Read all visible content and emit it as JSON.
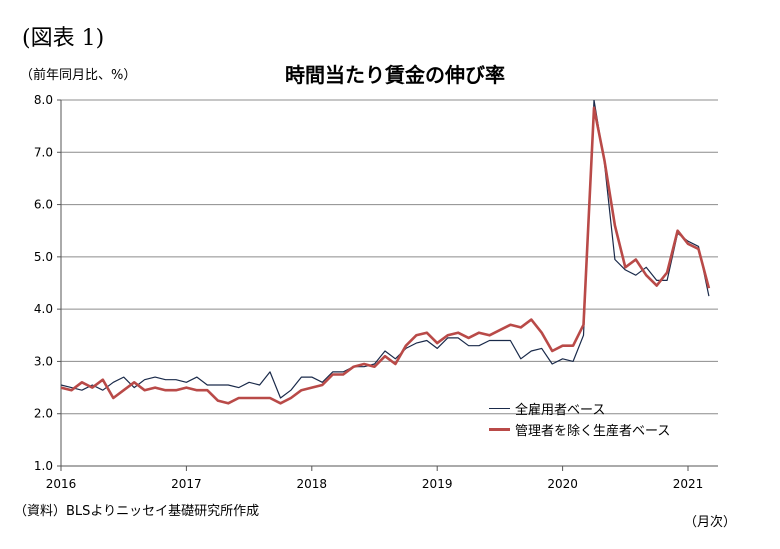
{
  "figure_label": "(図表 1)",
  "unit_label": "（前年同月比、%）",
  "source": "（資料）BLSよりニッセイ基礎研究所作成",
  "x_unit": "（月次）",
  "chart_data": {
    "type": "line",
    "title": "時間当たり賃金の伸び率",
    "xlabel": "",
    "ylabel": "",
    "ylim": [
      1.0,
      8.0
    ],
    "y_ticks": [
      "1.0",
      "2.0",
      "3.0",
      "4.0",
      "5.0",
      "6.0",
      "7.0",
      "8.0"
    ],
    "x_ticks": [
      "2016",
      "2017",
      "2018",
      "2019",
      "2020",
      "2021"
    ],
    "x_start": "2016-01",
    "x_end": "2021-03",
    "grid": "horizontal",
    "legend_position": "bottom-right",
    "series": [
      {
        "name": "全雇用者ベース",
        "color": "#1a2a4a",
        "values": [
          2.55,
          2.5,
          2.45,
          2.55,
          2.45,
          2.6,
          2.7,
          2.5,
          2.65,
          2.7,
          2.65,
          2.65,
          2.6,
          2.7,
          2.55,
          2.55,
          2.55,
          2.5,
          2.6,
          2.55,
          2.8,
          2.3,
          2.45,
          2.7,
          2.7,
          2.6,
          2.8,
          2.8,
          2.9,
          2.9,
          2.95,
          3.2,
          3.05,
          3.25,
          3.35,
          3.4,
          3.25,
          3.45,
          3.45,
          3.3,
          3.3,
          3.4,
          3.4,
          3.4,
          3.05,
          3.2,
          3.25,
          2.95,
          3.05,
          3.0,
          3.5,
          8.0,
          6.8,
          4.95,
          4.75,
          4.65,
          4.8,
          4.55,
          4.55,
          5.45,
          5.3,
          5.2,
          4.25
        ]
      },
      {
        "name": "管理者を除く生産者ベース",
        "color": "#b94a48",
        "values": [
          2.5,
          2.45,
          2.6,
          2.5,
          2.65,
          2.3,
          2.45,
          2.6,
          2.45,
          2.5,
          2.45,
          2.45,
          2.5,
          2.45,
          2.45,
          2.25,
          2.2,
          2.3,
          2.3,
          2.3,
          2.3,
          2.2,
          2.3,
          2.45,
          2.5,
          2.55,
          2.75,
          2.75,
          2.9,
          2.95,
          2.9,
          3.1,
          2.95,
          3.3,
          3.5,
          3.55,
          3.35,
          3.5,
          3.55,
          3.45,
          3.55,
          3.5,
          3.6,
          3.7,
          3.65,
          3.8,
          3.55,
          3.2,
          3.3,
          3.3,
          3.7,
          7.85,
          6.85,
          5.6,
          4.8,
          4.95,
          4.65,
          4.45,
          4.7,
          5.5,
          5.25,
          5.15,
          4.4
        ]
      }
    ]
  }
}
